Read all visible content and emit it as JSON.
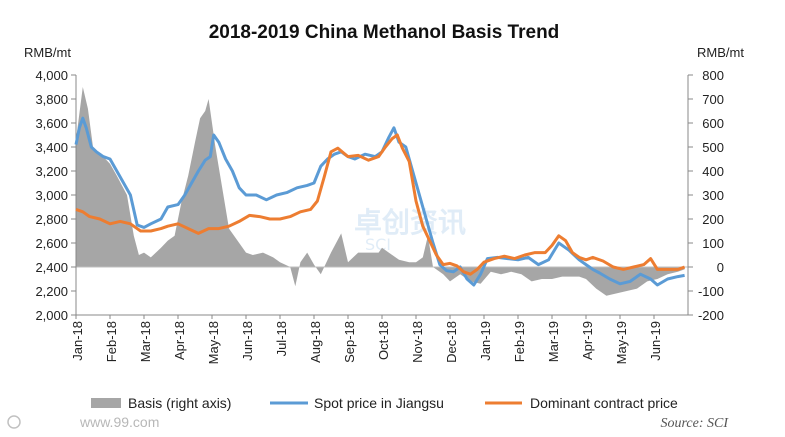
{
  "chart_data": {
    "type": "line",
    "title": "2018-2019 China Methanol Basis Trend",
    "left_unit": "RMB/mt",
    "right_unit": "RMB/mt",
    "left_ylim": [
      2000,
      4000
    ],
    "right_ylim": [
      -200,
      800
    ],
    "left_ticks": [
      "2,000",
      "2,200",
      "2,400",
      "2,600",
      "2,800",
      "3,000",
      "3,200",
      "3,400",
      "3,600",
      "3,800",
      "4,000"
    ],
    "right_ticks": [
      "-200",
      "-100",
      "0",
      "100",
      "200",
      "300",
      "400",
      "500",
      "600",
      "700",
      "800"
    ],
    "x_labels": [
      "Jan-18",
      "Feb-18",
      "Mar-18",
      "Apr-18",
      "May-18",
      "Jun-18",
      "Jul-18",
      "Aug-18",
      "Sep-18",
      "Oct-18",
      "Nov-18",
      "Dec-18",
      "Jan-19",
      "Feb-19",
      "Mar-19",
      "Apr-19",
      "May-19",
      "Jun-19"
    ],
    "series": [
      {
        "name": "Basis (right axis)",
        "axis": "right",
        "kind": "area",
        "color": "#a6a6a6",
        "points": [
          [
            0,
            530
          ],
          [
            0.1,
            640
          ],
          [
            0.2,
            750
          ],
          [
            0.35,
            660
          ],
          [
            0.5,
            500
          ],
          [
            0.8,
            460
          ],
          [
            1.0,
            430
          ],
          [
            1.2,
            380
          ],
          [
            1.5,
            300
          ],
          [
            1.7,
            130
          ],
          [
            1.85,
            50
          ],
          [
            2.0,
            60
          ],
          [
            2.2,
            40
          ],
          [
            2.5,
            80
          ],
          [
            2.7,
            110
          ],
          [
            2.9,
            130
          ],
          [
            3.1,
            270
          ],
          [
            3.3,
            380
          ],
          [
            3.5,
            520
          ],
          [
            3.65,
            620
          ],
          [
            3.8,
            650
          ],
          [
            3.9,
            700
          ],
          [
            4.1,
            500
          ],
          [
            4.3,
            330
          ],
          [
            4.5,
            160
          ],
          [
            4.8,
            100
          ],
          [
            5.0,
            60
          ],
          [
            5.2,
            50
          ],
          [
            5.5,
            60
          ],
          [
            5.8,
            40
          ],
          [
            6.0,
            20
          ],
          [
            6.3,
            0
          ],
          [
            6.45,
            -80
          ],
          [
            6.6,
            20
          ],
          [
            6.8,
            60
          ],
          [
            7.0,
            10
          ],
          [
            7.2,
            -30
          ],
          [
            7.5,
            60
          ],
          [
            7.8,
            140
          ],
          [
            8.0,
            20
          ],
          [
            8.3,
            60
          ],
          [
            8.6,
            60
          ],
          [
            8.9,
            60
          ],
          [
            9.0,
            80
          ],
          [
            9.2,
            60
          ],
          [
            9.5,
            30
          ],
          [
            9.8,
            20
          ],
          [
            10.0,
            20
          ],
          [
            10.2,
            40
          ],
          [
            10.35,
            130
          ],
          [
            10.5,
            0
          ],
          [
            10.8,
            -30
          ],
          [
            11.0,
            -60
          ],
          [
            11.3,
            -30
          ],
          [
            11.6,
            -60
          ],
          [
            11.9,
            -70
          ],
          [
            12.2,
            -20
          ],
          [
            12.5,
            -30
          ],
          [
            12.8,
            -20
          ],
          [
            13.1,
            -30
          ],
          [
            13.4,
            -60
          ],
          [
            13.7,
            -50
          ],
          [
            14.0,
            -50
          ],
          [
            14.3,
            -40
          ],
          [
            14.6,
            -40
          ],
          [
            14.8,
            -40
          ],
          [
            15.0,
            -50
          ],
          [
            15.3,
            -90
          ],
          [
            15.6,
            -120
          ],
          [
            15.9,
            -110
          ],
          [
            16.2,
            -100
          ],
          [
            16.5,
            -90
          ],
          [
            16.8,
            -60
          ],
          [
            17.1,
            -50
          ],
          [
            17.4,
            -30
          ],
          [
            17.7,
            -20
          ],
          [
            17.9,
            -10
          ]
        ]
      },
      {
        "name": "Spot price in Jiangsu",
        "axis": "left",
        "kind": "line",
        "color": "#5b9bd5",
        "points": [
          [
            0,
            3420
          ],
          [
            0.1,
            3560
          ],
          [
            0.2,
            3640
          ],
          [
            0.3,
            3560
          ],
          [
            0.45,
            3400
          ],
          [
            0.6,
            3360
          ],
          [
            0.8,
            3320
          ],
          [
            1.0,
            3300
          ],
          [
            1.2,
            3200
          ],
          [
            1.4,
            3100
          ],
          [
            1.6,
            3000
          ],
          [
            1.8,
            2750
          ],
          [
            2.0,
            2730
          ],
          [
            2.2,
            2760
          ],
          [
            2.5,
            2800
          ],
          [
            2.7,
            2900
          ],
          [
            3.0,
            2920
          ],
          [
            3.2,
            3000
          ],
          [
            3.4,
            3100
          ],
          [
            3.6,
            3200
          ],
          [
            3.8,
            3290
          ],
          [
            3.95,
            3320
          ],
          [
            4.05,
            3500
          ],
          [
            4.2,
            3440
          ],
          [
            4.4,
            3300
          ],
          [
            4.6,
            3200
          ],
          [
            4.8,
            3060
          ],
          [
            5.0,
            3000
          ],
          [
            5.3,
            3000
          ],
          [
            5.6,
            2960
          ],
          [
            5.9,
            3000
          ],
          [
            6.2,
            3020
          ],
          [
            6.5,
            3060
          ],
          [
            6.8,
            3080
          ],
          [
            7.0,
            3100
          ],
          [
            7.2,
            3240
          ],
          [
            7.4,
            3300
          ],
          [
            7.6,
            3340
          ],
          [
            7.8,
            3360
          ],
          [
            8.0,
            3320
          ],
          [
            8.2,
            3300
          ],
          [
            8.5,
            3340
          ],
          [
            8.8,
            3320
          ],
          [
            9.0,
            3360
          ],
          [
            9.2,
            3480
          ],
          [
            9.35,
            3560
          ],
          [
            9.5,
            3440
          ],
          [
            9.7,
            3400
          ],
          [
            9.9,
            3200
          ],
          [
            10.1,
            3000
          ],
          [
            10.3,
            2800
          ],
          [
            10.5,
            2600
          ],
          [
            10.7,
            2420
          ],
          [
            10.9,
            2370
          ],
          [
            11.1,
            2360
          ],
          [
            11.3,
            2400
          ],
          [
            11.5,
            2300
          ],
          [
            11.7,
            2250
          ],
          [
            11.9,
            2340
          ],
          [
            12.1,
            2470
          ],
          [
            12.4,
            2480
          ],
          [
            12.7,
            2470
          ],
          [
            13.0,
            2460
          ],
          [
            13.3,
            2480
          ],
          [
            13.6,
            2420
          ],
          [
            13.9,
            2460
          ],
          [
            14.2,
            2600
          ],
          [
            14.5,
            2540
          ],
          [
            14.8,
            2460
          ],
          [
            15.0,
            2420
          ],
          [
            15.2,
            2380
          ],
          [
            15.4,
            2350
          ],
          [
            15.7,
            2300
          ],
          [
            16.0,
            2260
          ],
          [
            16.3,
            2280
          ],
          [
            16.6,
            2340
          ],
          [
            16.9,
            2300
          ],
          [
            17.1,
            2250
          ],
          [
            17.4,
            2300
          ],
          [
            17.7,
            2320
          ],
          [
            17.9,
            2330
          ]
        ]
      },
      {
        "name": "Dominant contract price",
        "axis": "left",
        "kind": "line",
        "color": "#ed7d31",
        "points": [
          [
            0,
            2880
          ],
          [
            0.2,
            2860
          ],
          [
            0.4,
            2820
          ],
          [
            0.7,
            2800
          ],
          [
            1.0,
            2760
          ],
          [
            1.3,
            2780
          ],
          [
            1.6,
            2760
          ],
          [
            1.9,
            2700
          ],
          [
            2.2,
            2700
          ],
          [
            2.5,
            2720
          ],
          [
            2.7,
            2740
          ],
          [
            3.0,
            2760
          ],
          [
            3.3,
            2720
          ],
          [
            3.6,
            2680
          ],
          [
            3.9,
            2720
          ],
          [
            4.2,
            2720
          ],
          [
            4.5,
            2740
          ],
          [
            4.8,
            2780
          ],
          [
            5.1,
            2830
          ],
          [
            5.4,
            2820
          ],
          [
            5.7,
            2800
          ],
          [
            6.0,
            2800
          ],
          [
            6.3,
            2820
          ],
          [
            6.6,
            2860
          ],
          [
            6.9,
            2880
          ],
          [
            7.1,
            2950
          ],
          [
            7.3,
            3150
          ],
          [
            7.5,
            3360
          ],
          [
            7.7,
            3390
          ],
          [
            8.0,
            3320
          ],
          [
            8.3,
            3330
          ],
          [
            8.6,
            3290
          ],
          [
            8.9,
            3320
          ],
          [
            9.1,
            3400
          ],
          [
            9.3,
            3470
          ],
          [
            9.45,
            3500
          ],
          [
            9.6,
            3390
          ],
          [
            9.8,
            3280
          ],
          [
            10.0,
            2950
          ],
          [
            10.2,
            2740
          ],
          [
            10.4,
            2620
          ],
          [
            10.6,
            2500
          ],
          [
            10.8,
            2420
          ],
          [
            11.0,
            2430
          ],
          [
            11.2,
            2410
          ],
          [
            11.4,
            2360
          ],
          [
            11.6,
            2340
          ],
          [
            11.8,
            2380
          ],
          [
            12.0,
            2440
          ],
          [
            12.3,
            2470
          ],
          [
            12.6,
            2490
          ],
          [
            12.9,
            2470
          ],
          [
            13.2,
            2500
          ],
          [
            13.5,
            2520
          ],
          [
            13.8,
            2520
          ],
          [
            14.0,
            2580
          ],
          [
            14.2,
            2660
          ],
          [
            14.4,
            2620
          ],
          [
            14.6,
            2520
          ],
          [
            14.8,
            2480
          ],
          [
            15.0,
            2460
          ],
          [
            15.2,
            2480
          ],
          [
            15.5,
            2450
          ],
          [
            15.8,
            2400
          ],
          [
            16.1,
            2380
          ],
          [
            16.4,
            2400
          ],
          [
            16.7,
            2420
          ],
          [
            16.9,
            2470
          ],
          [
            17.1,
            2380
          ],
          [
            17.4,
            2380
          ],
          [
            17.7,
            2380
          ],
          [
            17.9,
            2400
          ]
        ]
      }
    ],
    "legend": {
      "basis": "Basis (right axis)",
      "spot": "Spot price in Jiangsu",
      "contract": "Dominant contract price"
    },
    "source": "Source: SCI",
    "watermark_left": "www.99.com",
    "watermark_center": "卓创资讯",
    "watermark_center_sub": "SCI"
  }
}
